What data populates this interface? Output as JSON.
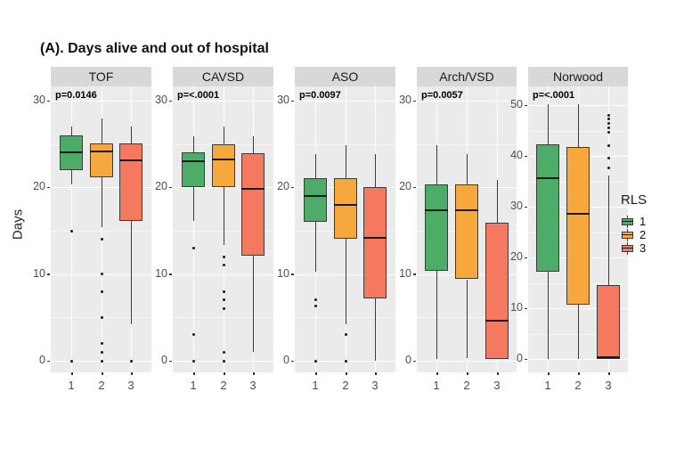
{
  "chart_data": {
    "type": "boxplot",
    "title": "(A). Days alive and out of hospital",
    "ylabel": "Days",
    "xlabel": "",
    "categories": [
      "1",
      "2",
      "3"
    ],
    "legend_title": "RLS",
    "series_colors": {
      "1": "#4CAC68",
      "2": "#F6A83C",
      "3": "#F5795E"
    },
    "facets": [
      {
        "label": "TOF",
        "p_value": "p=0.0146",
        "ylim": [
          0,
          30
        ],
        "yticks": [
          0,
          10,
          20,
          30
        ],
        "groups": [
          {
            "rls": "1",
            "q1": 22,
            "median": 24,
            "q3": 26,
            "whisker_low": 20.3,
            "whisker_high": 27,
            "outliers": [
              15,
              0
            ]
          },
          {
            "rls": "2",
            "q1": 21.2,
            "median": 24.1,
            "q3": 25.1,
            "whisker_low": 15.4,
            "whisker_high": 27.9,
            "outliers": [
              14,
              10,
              8,
              5,
              2,
              1,
              0
            ]
          },
          {
            "rls": "3",
            "q1": 16.1,
            "median": 23.1,
            "q3": 25.1,
            "whisker_low": 4.2,
            "whisker_high": 27,
            "outliers": [
              0
            ]
          }
        ]
      },
      {
        "label": "CAVSD",
        "p_value": "p=<.0001",
        "ylim": [
          0,
          30
        ],
        "yticks": [
          0,
          10,
          20,
          30
        ],
        "groups": [
          {
            "rls": "1",
            "q1": 20,
            "median": 23,
            "q3": 24,
            "whisker_low": 16.1,
            "whisker_high": 25.9,
            "outliers": [
              13,
              3,
              0
            ]
          },
          {
            "rls": "2",
            "q1": 20,
            "median": 23.2,
            "q3": 25,
            "whisker_low": 13.4,
            "whisker_high": 27,
            "outliers": [
              12,
              11,
              8,
              7,
              6,
              1,
              0
            ]
          },
          {
            "rls": "3",
            "q1": 12.1,
            "median": 19.8,
            "q3": 23.9,
            "whisker_low": 1,
            "whisker_high": 25.9,
            "outliers": []
          }
        ]
      },
      {
        "label": "ASO",
        "p_value": "p=0.0097",
        "ylim": [
          0,
          30
        ],
        "yticks": [
          0,
          10,
          20,
          30
        ],
        "groups": [
          {
            "rls": "1",
            "q1": 16,
            "median": 19,
            "q3": 21.1,
            "whisker_low": 10.3,
            "whisker_high": 23.8,
            "outliers": [
              7,
              6.3,
              0
            ]
          },
          {
            "rls": "2",
            "q1": 14.1,
            "median": 18,
            "q3": 21.1,
            "whisker_low": 4.2,
            "whisker_high": 24.9,
            "outliers": [
              3,
              0
            ]
          },
          {
            "rls": "3",
            "q1": 7.2,
            "median": 14.2,
            "q3": 20,
            "whisker_low": 0,
            "whisker_high": 23.8,
            "outliers": []
          }
        ]
      },
      {
        "label": "Arch/VSD",
        "p_value": "p=0.0057",
        "ylim": [
          0,
          30
        ],
        "yticks": [
          0,
          10,
          20,
          30
        ],
        "groups": [
          {
            "rls": "1",
            "q1": 10.4,
            "median": 17.4,
            "q3": 20.3,
            "whisker_low": 0.2,
            "whisker_high": 24.9,
            "outliers": []
          },
          {
            "rls": "2",
            "q1": 9.4,
            "median": 17.4,
            "q3": 20.3,
            "whisker_low": 0.3,
            "whisker_high": 23.8,
            "outliers": []
          },
          {
            "rls": "3",
            "q1": 0.2,
            "median": 4.6,
            "q3": 15.9,
            "whisker_low": 0.2,
            "whisker_high": 20.9,
            "outliers": []
          }
        ]
      },
      {
        "label": "Norwood",
        "p_value": "p=<.0001",
        "ylim": [
          0,
          50
        ],
        "yticks": [
          0,
          10,
          20,
          30,
          40,
          50
        ],
        "groups": [
          {
            "rls": "1",
            "q1": 17.2,
            "median": 35.7,
            "q3": 42.3,
            "whisker_low": 0,
            "whisker_high": 50.2,
            "outliers": []
          },
          {
            "rls": "2",
            "q1": 10.7,
            "median": 28.6,
            "q3": 41.8,
            "whisker_low": 0,
            "whisker_high": 50.2,
            "outliers": []
          },
          {
            "rls": "3",
            "q1": 0,
            "median": 0.4,
            "q3": 14.6,
            "whisker_low": 0,
            "whisker_high": 36.1,
            "outliers": [
              37.7,
              39.6,
              42,
              44.7,
              45.6,
              46.4,
              47.2,
              48
            ]
          }
        ]
      }
    ]
  },
  "legend": {
    "title": "RLS",
    "items": [
      {
        "label": "1",
        "color": "#4CAC68"
      },
      {
        "label": "2",
        "color": "#F6A83C"
      },
      {
        "label": "3",
        "color": "#F5795E"
      }
    ]
  },
  "style": {
    "panel_bg": "#EBEBEB",
    "strip_bg": "#D8D8D8",
    "grid_major": "#FFFFFF",
    "grid_minor": "rgba(255,255,255,0.55)",
    "box_border": "#3C3C3C",
    "median_color": "#1A1A1A",
    "outlier_color": "#1A1A1A",
    "tick_text": "#4D4D4D"
  }
}
